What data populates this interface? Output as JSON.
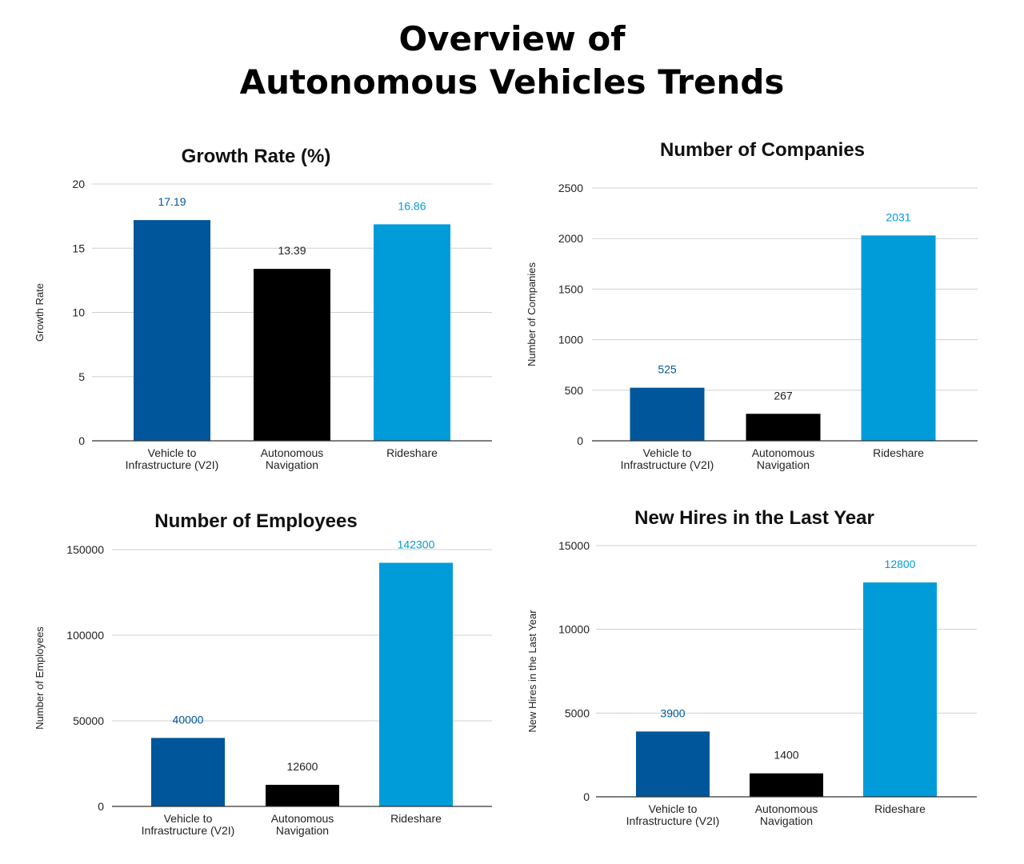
{
  "header": {
    "title_line1": "Overview of",
    "title_line2": "Autonomous Vehicles Trends"
  },
  "colors": {
    "v2i": "#00569A",
    "navigation": "#000000",
    "rideshare": "#009CDA",
    "grid": "#d0d0d0",
    "axis": "#333333"
  },
  "chart_data": [
    {
      "type": "bar",
      "title": "Growth Rate (%)",
      "ylabel": "Growth Rate",
      "xlabel": "",
      "categories": [
        [
          "Vehicle to",
          "Infrastructure (V2I)"
        ],
        [
          "Autonomous",
          "Navigation"
        ],
        [
          "Rideshare"
        ]
      ],
      "values": [
        17.19,
        13.39,
        16.86
      ],
      "data_labels": [
        "17.19",
        "13.39",
        "16.86"
      ],
      "ylim": [
        0,
        20
      ],
      "yticks": [
        0,
        5,
        10,
        15,
        20
      ],
      "grid": true,
      "legend": "none"
    },
    {
      "type": "bar",
      "title": "Number of Companies",
      "ylabel": "Number of Companies",
      "xlabel": "",
      "categories": [
        [
          "Vehicle to",
          "Infrastructure (V2I)"
        ],
        [
          "Autonomous",
          "Navigation"
        ],
        [
          "Rideshare"
        ]
      ],
      "values": [
        525,
        267,
        2031
      ],
      "data_labels": [
        "525",
        "267",
        "2031"
      ],
      "ylim": [
        0,
        2500
      ],
      "yticks": [
        0,
        500,
        1000,
        1500,
        2000,
        2500
      ],
      "grid": true,
      "legend": "none"
    },
    {
      "type": "bar",
      "title": "Number of Employees",
      "ylabel": "Number of Employees",
      "xlabel": "",
      "categories": [
        [
          "Vehicle to",
          "Infrastructure (V2I)"
        ],
        [
          "Autonomous",
          "Navigation"
        ],
        [
          "Rideshare"
        ]
      ],
      "values": [
        40000,
        12600,
        142300
      ],
      "data_labels": [
        "40000",
        "12600",
        "142300"
      ],
      "ylim": [
        0,
        150000
      ],
      "yticks": [
        0,
        50000,
        100000,
        150000
      ],
      "grid": true,
      "legend": "none"
    },
    {
      "type": "bar",
      "title": "New Hires in the Last Year",
      "ylabel": "New Hires in the Last Year",
      "xlabel": "",
      "categories": [
        [
          "Vehicle to",
          "Infrastructure (V2I)"
        ],
        [
          "Autonomous",
          "Navigation"
        ],
        [
          "Rideshare"
        ]
      ],
      "values": [
        3900,
        1400,
        12800
      ],
      "data_labels": [
        "3900",
        "1400",
        "12800"
      ],
      "ylim": [
        0,
        15000
      ],
      "yticks": [
        0,
        5000,
        10000,
        15000
      ],
      "grid": true,
      "legend": "none"
    }
  ]
}
